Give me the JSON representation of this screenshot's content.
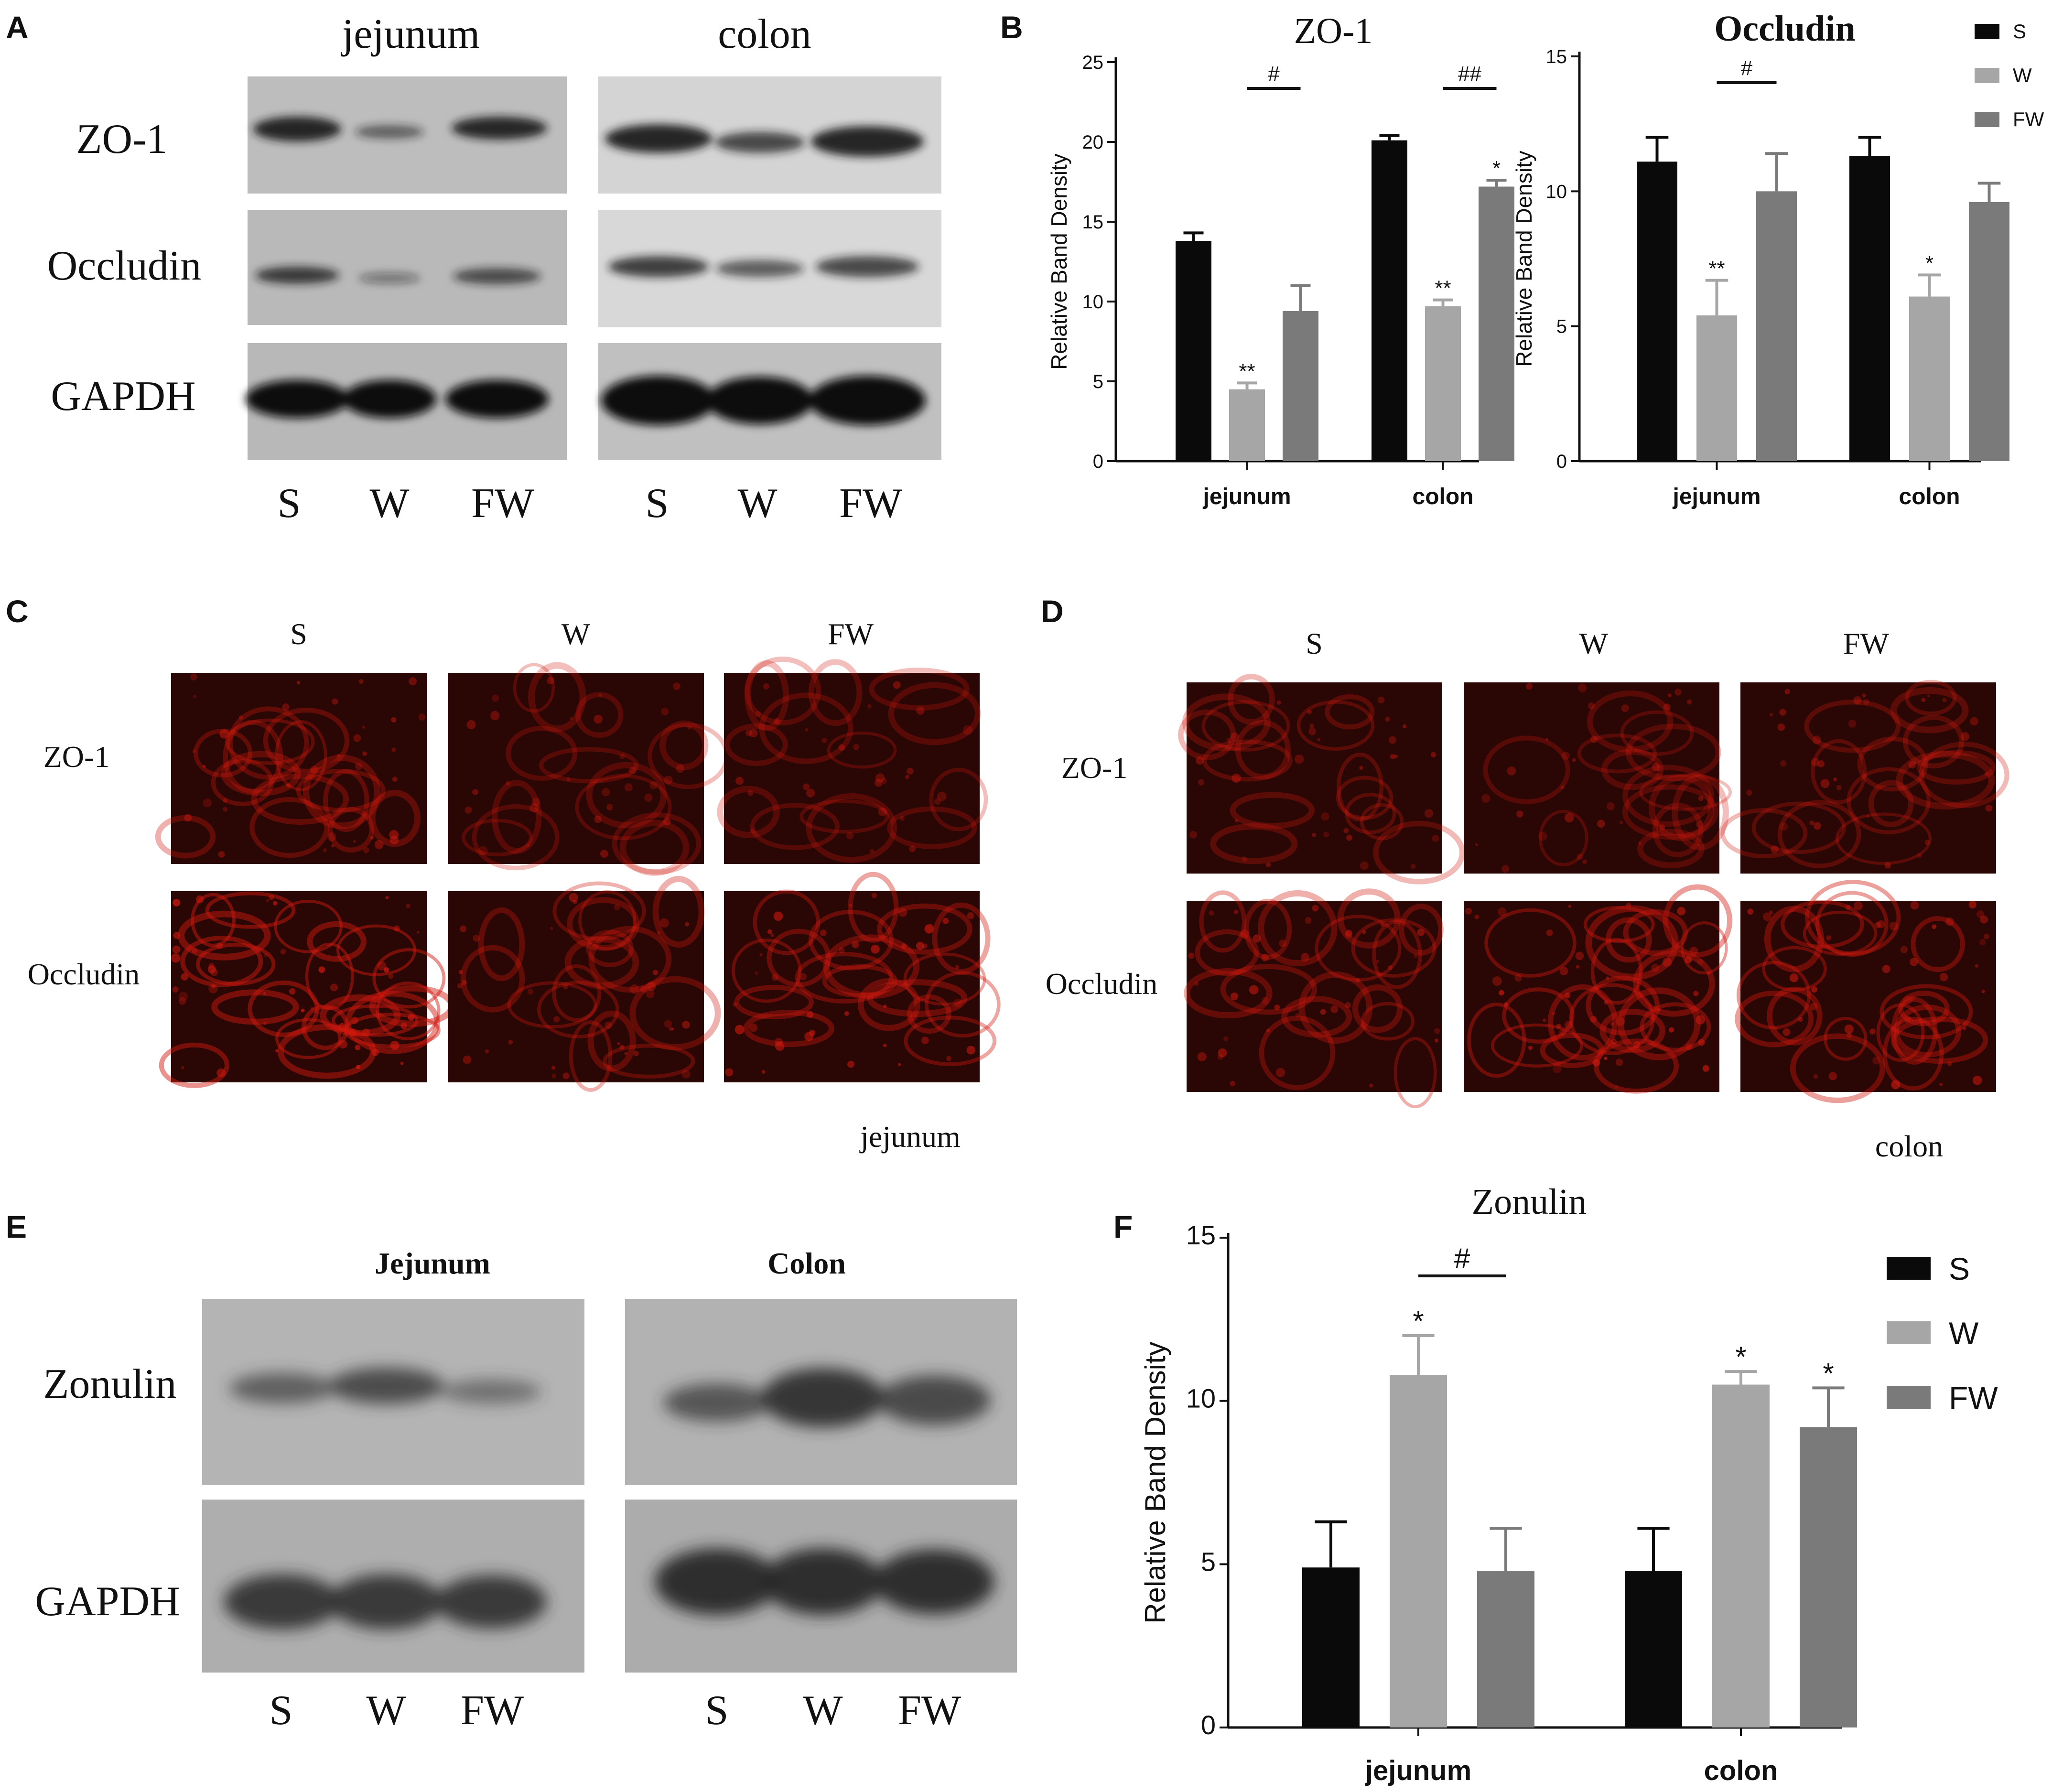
{
  "panels": {
    "A": {
      "letter": "A",
      "tissue_labels": [
        "jejunum",
        "colon"
      ],
      "row_labels": [
        "ZO-1",
        "Occludin",
        "GAPDH"
      ],
      "lane_labels": [
        "S",
        "W",
        "FW",
        "S",
        "W",
        "FW"
      ]
    },
    "B": {
      "letter": "B"
    },
    "C": {
      "letter": "C",
      "col_labels": [
        "S",
        "W",
        "FW"
      ],
      "row_labels": [
        "ZO-1",
        "Occludin"
      ],
      "caption": "jejunum"
    },
    "D": {
      "letter": "D",
      "col_labels": [
        "S",
        "W",
        "FW"
      ],
      "row_labels": [
        "ZO-1",
        "Occludin"
      ],
      "caption": "colon"
    },
    "E": {
      "letter": "E",
      "tissue_labels": [
        "Jejunum",
        "Colon"
      ],
      "row_labels": [
        "Zonulin",
        "GAPDH"
      ],
      "lane_labels": [
        "S",
        "W",
        "FW",
        "S",
        "W",
        "FW"
      ]
    },
    "F": {
      "letter": "F"
    }
  },
  "colors": {
    "S": "#0a0a0a",
    "W": "#a6a6a6",
    "FW": "#7a7a7a",
    "fluor_bg": "#2a0604",
    "fluor_stain": "#d0190f"
  },
  "chart_data": [
    {
      "id": "zo1",
      "type": "bar",
      "title": "ZO-1",
      "xlabel": "",
      "ylabel": "Relative Band Density",
      "categories": [
        "jejunum",
        "colon"
      ],
      "ylim": [
        0,
        25
      ],
      "yticks": [
        0,
        5,
        10,
        15,
        20,
        25
      ],
      "series": [
        {
          "name": "S",
          "values": [
            13.8,
            20.1
          ],
          "errors": [
            0.5,
            0.3
          ]
        },
        {
          "name": "W",
          "values": [
            4.5,
            9.7
          ],
          "errors": [
            0.4,
            0.4
          ]
        },
        {
          "name": "FW",
          "values": [
            9.4,
            17.2
          ],
          "errors": [
            1.6,
            0.4
          ]
        }
      ],
      "annotations": [
        {
          "category": "jejunum",
          "series": "W",
          "text": "**"
        },
        {
          "category": "colon",
          "series": "W",
          "text": "**"
        },
        {
          "category": "colon",
          "series": "FW",
          "text": "*"
        },
        {
          "category": "jejunum",
          "between": [
            "W",
            "FW"
          ],
          "text": "#"
        },
        {
          "category": "colon",
          "between": [
            "W",
            "FW"
          ],
          "text": "##"
        }
      ],
      "legend": {
        "position": "none"
      }
    },
    {
      "id": "occludin",
      "type": "bar",
      "title": "Occludin",
      "xlabel": "",
      "ylabel": "Relative Band Density",
      "categories": [
        "jejunum",
        "colon"
      ],
      "ylim": [
        0,
        15
      ],
      "yticks": [
        0,
        5,
        10,
        15
      ],
      "series": [
        {
          "name": "S",
          "values": [
            11.1,
            11.3
          ],
          "errors": [
            0.9,
            0.7
          ]
        },
        {
          "name": "W",
          "values": [
            5.4,
            6.1
          ],
          "errors": [
            1.3,
            0.8
          ]
        },
        {
          "name": "FW",
          "values": [
            10.0,
            9.6
          ],
          "errors": [
            1.4,
            0.7
          ]
        }
      ],
      "annotations": [
        {
          "category": "jejunum",
          "series": "W",
          "text": "**"
        },
        {
          "category": "colon",
          "series": "W",
          "text": "*"
        },
        {
          "category": "jejunum",
          "between": [
            "W",
            "FW"
          ],
          "text": "#"
        }
      ],
      "legend": {
        "position": "top-right",
        "entries": [
          "S",
          "W",
          "FW"
        ]
      }
    },
    {
      "id": "zonulin",
      "type": "bar",
      "title": "Zonulin",
      "xlabel": "",
      "ylabel": "Relative Band Density",
      "categories": [
        "jejunum",
        "colon"
      ],
      "ylim": [
        0,
        15
      ],
      "yticks": [
        0,
        5,
        10,
        15
      ],
      "series": [
        {
          "name": "S",
          "values": [
            4.9,
            4.8
          ],
          "errors": [
            1.4,
            1.3
          ]
        },
        {
          "name": "W",
          "values": [
            10.8,
            10.5
          ],
          "errors": [
            1.2,
            0.4
          ]
        },
        {
          "name": "FW",
          "values": [
            4.8,
            9.2
          ],
          "errors": [
            1.3,
            1.2
          ]
        }
      ],
      "annotations": [
        {
          "category": "jejunum",
          "series": "W",
          "text": "*"
        },
        {
          "category": "colon",
          "series": "W",
          "text": "*"
        },
        {
          "category": "colon",
          "series": "FW",
          "text": "*"
        },
        {
          "category": "jejunum",
          "between": [
            "W",
            "FW"
          ],
          "text": "#"
        }
      ],
      "legend": {
        "position": "right",
        "entries": [
          "S",
          "W",
          "FW"
        ]
      }
    }
  ]
}
